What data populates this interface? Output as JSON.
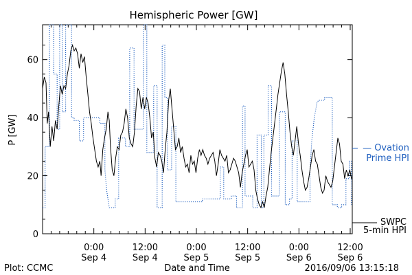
{
  "chart_data": {
    "type": "line",
    "title": "Hemispheric Power [GW]",
    "xlabel": "Date and Time",
    "ylabel": "P [GW]",
    "x_unit": "hours from 2016-09-03 12:00 UT",
    "xlim": [
      0,
      72
    ],
    "ylim": [
      0,
      72
    ],
    "grid": false,
    "y_ticks": [
      0,
      20,
      40,
      60
    ],
    "x_ticks": [
      {
        "x": 12,
        "time": "0:00",
        "day": "Sep 4"
      },
      {
        "x": 24,
        "time": "12:00",
        "day": "Sep 4"
      },
      {
        "x": 36,
        "time": "0:00",
        "day": "Sep 5"
      },
      {
        "x": 48,
        "time": "12:00",
        "day": "Sep 5"
      },
      {
        "x": 60,
        "time": "0:00",
        "day": "Sep 6"
      },
      {
        "x": 72,
        "time": "12:00",
        "day": "Sep 6"
      }
    ],
    "series": [
      {
        "name": "SWPC 5-min HPI",
        "label_lines": [
          "SWPC",
          "5-min HPI"
        ],
        "color": "#000000",
        "style": "solid",
        "points": [
          [
            0,
            50
          ],
          [
            0.4,
            54
          ],
          [
            0.8,
            52
          ],
          [
            1.1,
            38
          ],
          [
            1.4,
            42
          ],
          [
            1.8,
            30
          ],
          [
            2.2,
            37
          ],
          [
            2.6,
            32
          ],
          [
            3.0,
            39
          ],
          [
            3.4,
            36
          ],
          [
            3.8,
            44
          ],
          [
            4.2,
            51
          ],
          [
            4.6,
            48
          ],
          [
            5.0,
            51
          ],
          [
            5.4,
            50
          ],
          [
            5.8,
            55
          ],
          [
            6.2,
            58
          ],
          [
            6.6,
            63
          ],
          [
            7.0,
            65
          ],
          [
            7.4,
            63
          ],
          [
            7.8,
            64
          ],
          [
            8.2,
            62
          ],
          [
            8.6,
            57
          ],
          [
            9.0,
            62
          ],
          [
            9.4,
            59
          ],
          [
            9.8,
            61
          ],
          [
            10.2,
            54
          ],
          [
            10.6,
            48
          ],
          [
            11.0,
            42
          ],
          [
            11.4,
            38
          ],
          [
            11.8,
            33
          ],
          [
            12.2,
            29
          ],
          [
            12.6,
            25
          ],
          [
            13.0,
            23
          ],
          [
            13.4,
            25
          ],
          [
            13.7,
            20
          ],
          [
            14.1,
            29
          ],
          [
            14.5,
            33
          ],
          [
            14.9,
            36
          ],
          [
            15.3,
            42
          ],
          [
            15.6,
            39
          ],
          [
            15.9,
            30
          ],
          [
            16.3,
            22
          ],
          [
            16.7,
            20
          ],
          [
            17.1,
            26
          ],
          [
            17.5,
            30
          ],
          [
            17.9,
            29
          ],
          [
            18.3,
            34
          ],
          [
            18.7,
            35
          ],
          [
            19.1,
            38
          ],
          [
            19.5,
            43
          ],
          [
            19.9,
            40
          ],
          [
            20.3,
            33
          ],
          [
            20.7,
            31
          ],
          [
            21.1,
            30
          ],
          [
            21.5,
            35
          ],
          [
            21.9,
            44
          ],
          [
            22.3,
            50
          ],
          [
            22.7,
            49
          ],
          [
            23.1,
            43
          ],
          [
            23.5,
            47
          ],
          [
            23.9,
            43
          ],
          [
            24.3,
            47
          ],
          [
            24.7,
            45
          ],
          [
            25.1,
            40
          ],
          [
            25.5,
            33
          ],
          [
            25.9,
            35
          ],
          [
            26.3,
            26
          ],
          [
            26.7,
            23
          ],
          [
            27.1,
            28
          ],
          [
            27.5,
            27
          ],
          [
            27.9,
            25
          ],
          [
            28.3,
            21
          ],
          [
            28.7,
            29
          ],
          [
            29.1,
            35
          ],
          [
            29.5,
            46
          ],
          [
            29.9,
            50
          ],
          [
            30.3,
            43
          ],
          [
            30.7,
            36
          ],
          [
            31.1,
            29
          ],
          [
            31.5,
            30
          ],
          [
            31.9,
            33
          ],
          [
            32.3,
            28
          ],
          [
            32.7,
            30
          ],
          [
            33.1,
            26
          ],
          [
            33.5,
            23
          ],
          [
            33.9,
            24
          ],
          [
            34.3,
            21
          ],
          [
            34.7,
            27
          ],
          [
            35.1,
            24
          ],
          [
            35.5,
            25
          ],
          [
            35.9,
            21
          ],
          [
            36.3,
            26
          ],
          [
            36.7,
            29
          ],
          [
            37.1,
            27
          ],
          [
            37.5,
            29
          ],
          [
            37.9,
            27
          ],
          [
            38.3,
            26
          ],
          [
            38.7,
            24
          ],
          [
            39.1,
            26
          ],
          [
            39.5,
            27
          ],
          [
            39.9,
            28
          ],
          [
            40.3,
            25
          ],
          [
            40.7,
            20
          ],
          [
            41.1,
            24
          ],
          [
            41.5,
            29
          ],
          [
            41.9,
            27
          ],
          [
            42.3,
            26
          ],
          [
            42.7,
            25
          ],
          [
            43.1,
            27
          ],
          [
            43.5,
            21
          ],
          [
            43.9,
            22
          ],
          [
            44.3,
            24
          ],
          [
            44.7,
            26
          ],
          [
            45.1,
            25
          ],
          [
            45.5,
            23
          ],
          [
            45.9,
            21
          ],
          [
            46.3,
            16
          ],
          [
            46.7,
            21
          ],
          [
            47.1,
            24
          ],
          [
            47.5,
            27
          ],
          [
            47.9,
            29
          ],
          [
            48.3,
            23
          ],
          [
            48.7,
            24
          ],
          [
            49.1,
            25
          ],
          [
            49.5,
            22
          ],
          [
            49.9,
            15
          ],
          [
            50.3,
            12
          ],
          [
            50.7,
            10
          ],
          [
            51.1,
            9
          ],
          [
            51.5,
            11
          ],
          [
            51.9,
            9
          ],
          [
            52.3,
            13
          ],
          [
            52.7,
            16
          ],
          [
            53.1,
            22
          ],
          [
            53.5,
            28
          ],
          [
            53.9,
            33
          ],
          [
            54.3,
            38
          ],
          [
            54.7,
            43
          ],
          [
            55.1,
            48
          ],
          [
            55.5,
            52
          ],
          [
            55.9,
            56
          ],
          [
            56.3,
            59
          ],
          [
            56.7,
            55
          ],
          [
            57.1,
            48
          ],
          [
            57.5,
            42
          ],
          [
            57.9,
            35
          ],
          [
            58.3,
            30
          ],
          [
            58.7,
            27
          ],
          [
            59.1,
            32
          ],
          [
            59.5,
            37
          ],
          [
            59.9,
            31
          ],
          [
            60.3,
            27
          ],
          [
            60.7,
            22
          ],
          [
            61.1,
            18
          ],
          [
            61.5,
            15
          ],
          [
            61.9,
            16
          ],
          [
            62.3,
            19
          ],
          [
            62.7,
            23
          ],
          [
            63.1,
            27
          ],
          [
            63.5,
            29
          ],
          [
            63.9,
            25
          ],
          [
            64.3,
            24
          ],
          [
            64.7,
            20
          ],
          [
            65.1,
            16
          ],
          [
            65.5,
            14
          ],
          [
            65.9,
            15
          ],
          [
            66.3,
            20
          ],
          [
            66.7,
            18
          ],
          [
            67.1,
            17
          ],
          [
            67.5,
            16
          ],
          [
            67.9,
            18
          ],
          [
            68.3,
            23
          ],
          [
            68.7,
            28
          ],
          [
            69.1,
            33
          ],
          [
            69.5,
            31
          ],
          [
            69.9,
            25
          ],
          [
            70.3,
            24
          ],
          [
            70.7,
            19
          ],
          [
            71.1,
            22
          ],
          [
            71.5,
            20
          ],
          [
            71.9,
            22
          ],
          [
            72.3,
            19
          ],
          [
            72.5,
            19
          ]
        ]
      },
      {
        "name": "Ovation Prime HPI",
        "label_lines": [
          "— Ovation",
          "Prime HPI"
        ],
        "color": "#1f5fbf",
        "style": "dotted",
        "points": [
          [
            0,
            9
          ],
          [
            0.6,
            9
          ],
          [
            0.6,
            30
          ],
          [
            1.6,
            30
          ],
          [
            1.6,
            72
          ],
          [
            2.6,
            72
          ],
          [
            2.6,
            55
          ],
          [
            3.4,
            55
          ],
          [
            3.4,
            36
          ],
          [
            4.0,
            36
          ],
          [
            4.0,
            72
          ],
          [
            4.6,
            72
          ],
          [
            4.6,
            42
          ],
          [
            5.4,
            42
          ],
          [
            5.4,
            72
          ],
          [
            6.8,
            72
          ],
          [
            6.8,
            40
          ],
          [
            7.4,
            40
          ],
          [
            7.4,
            39
          ],
          [
            8.6,
            39
          ],
          [
            8.6,
            32
          ],
          [
            9.6,
            32
          ],
          [
            9.6,
            40
          ],
          [
            13.4,
            40
          ],
          [
            13.4,
            38
          ],
          [
            14.6,
            38
          ],
          [
            14.6,
            22
          ],
          [
            15.0,
            15
          ],
          [
            15.6,
            9
          ],
          [
            17.0,
            9
          ],
          [
            17.0,
            12
          ],
          [
            17.8,
            12
          ],
          [
            17.8,
            33
          ],
          [
            19.4,
            33
          ],
          [
            19.4,
            30
          ],
          [
            20.4,
            30
          ],
          [
            20.4,
            64
          ],
          [
            21.4,
            64
          ],
          [
            21.4,
            36
          ],
          [
            23.6,
            36
          ],
          [
            23.6,
            72
          ],
          [
            24.4,
            72
          ],
          [
            24.4,
            28
          ],
          [
            26.0,
            28
          ],
          [
            26.0,
            51
          ],
          [
            26.8,
            51
          ],
          [
            26.8,
            9
          ],
          [
            28.0,
            9
          ],
          [
            28.0,
            65
          ],
          [
            28.6,
            65
          ],
          [
            28.6,
            47
          ],
          [
            29.2,
            47
          ],
          [
            29.2,
            22
          ],
          [
            30.2,
            22
          ],
          [
            30.2,
            37
          ],
          [
            31.2,
            37
          ],
          [
            31.2,
            11
          ],
          [
            37.4,
            11
          ],
          [
            37.4,
            12
          ],
          [
            41.6,
            12
          ],
          [
            41.6,
            23
          ],
          [
            42.4,
            23
          ],
          [
            42.4,
            12
          ],
          [
            44.2,
            12
          ],
          [
            44.2,
            13
          ],
          [
            45.4,
            13
          ],
          [
            45.4,
            9
          ],
          [
            46.8,
            9
          ],
          [
            46.8,
            44
          ],
          [
            47.4,
            44
          ],
          [
            47.4,
            13
          ],
          [
            49.2,
            13
          ],
          [
            49.2,
            9
          ],
          [
            50.2,
            9
          ],
          [
            50.2,
            34
          ],
          [
            51.2,
            34
          ],
          [
            51.2,
            9
          ],
          [
            51.8,
            9
          ],
          [
            51.8,
            34
          ],
          [
            52.8,
            34
          ],
          [
            52.8,
            51
          ],
          [
            53.6,
            51
          ],
          [
            53.6,
            13
          ],
          [
            55.4,
            13
          ],
          [
            55.4,
            42
          ],
          [
            56.8,
            42
          ],
          [
            56.8,
            10
          ],
          [
            57.8,
            10
          ],
          [
            57.8,
            12
          ],
          [
            58.4,
            12
          ],
          [
            58.4,
            32
          ],
          [
            59.6,
            32
          ],
          [
            59.6,
            11
          ],
          [
            62.6,
            11
          ],
          [
            62.6,
            22
          ],
          [
            63.0,
            32
          ],
          [
            63.6,
            40
          ],
          [
            64.2,
            45
          ],
          [
            64.6,
            46
          ],
          [
            66.0,
            46
          ],
          [
            66.0,
            47
          ],
          [
            67.8,
            47
          ],
          [
            67.8,
            10
          ],
          [
            69.0,
            10
          ],
          [
            69.0,
            9
          ],
          [
            70.0,
            9
          ],
          [
            70.0,
            10
          ],
          [
            71.0,
            10
          ],
          [
            71.0,
            19
          ],
          [
            71.8,
            19
          ],
          [
            71.8,
            25
          ],
          [
            72.3,
            25
          ],
          [
            72.3,
            10
          ]
        ]
      }
    ]
  },
  "footer": {
    "plot_credit": "Plot: CCMC",
    "timestamp": "2016/09/06 13:15:18"
  }
}
